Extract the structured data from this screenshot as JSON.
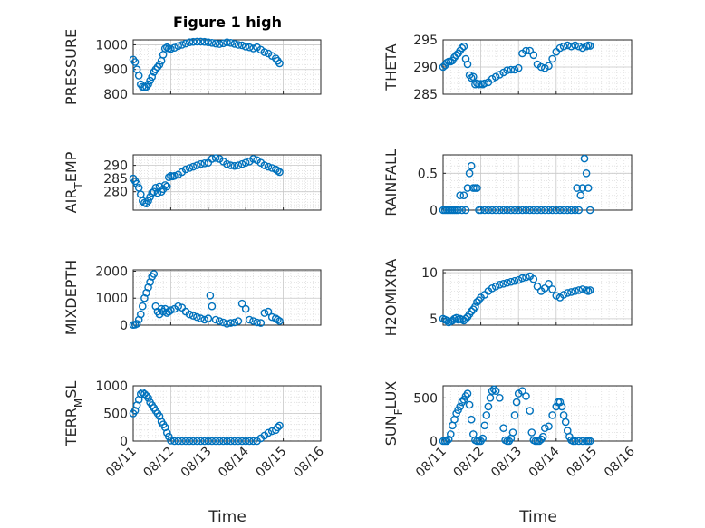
{
  "figure": {
    "title": "Figure 1 high",
    "xlabel": "Time",
    "marker_color": "#0072BD",
    "x_tick_labels": [
      "08/11",
      "08/12",
      "08/13",
      "08/14",
      "08/15",
      "08/16"
    ]
  },
  "chart_data": [
    {
      "type": "scatter",
      "marker": "circle",
      "ylabel": "PRESSURE",
      "x_unit": "days since 08/11",
      "xlim": [
        0,
        5
      ],
      "ylim": [
        800,
        1020
      ],
      "yticks": [
        800,
        900,
        1000
      ],
      "grid": true,
      "x": [
        0.0,
        0.05,
        0.1,
        0.15,
        0.2,
        0.25,
        0.3,
        0.35,
        0.4,
        0.45,
        0.5,
        0.55,
        0.6,
        0.65,
        0.7,
        0.75,
        0.8,
        0.85,
        0.9,
        0.95,
        1.0,
        1.1,
        1.2,
        1.3,
        1.4,
        1.5,
        1.6,
        1.7,
        1.8,
        1.9,
        2.0,
        2.1,
        2.2,
        2.3,
        2.4,
        2.5,
        2.6,
        2.7,
        2.8,
        2.9,
        3.0,
        3.1,
        3.2,
        3.3,
        3.4,
        3.5,
        3.6,
        3.7,
        3.8,
        3.85,
        3.9
      ],
      "y": [
        940,
        930,
        900,
        875,
        840,
        830,
        828,
        830,
        840,
        855,
        870,
        890,
        900,
        910,
        920,
        935,
        960,
        985,
        990,
        985,
        983,
        988,
        995,
        1000,
        1005,
        1010,
        1012,
        1013,
        1013,
        1012,
        1010,
        1008,
        1005,
        1003,
        1006,
        1010,
        1008,
        1004,
        1000,
        998,
        993,
        990,
        985,
        990,
        980,
        970,
        965,
        955,
        945,
        935,
        925
      ]
    },
    {
      "type": "scatter",
      "marker": "circle",
      "ylabel": "THETA",
      "x_unit": "days since 08/11",
      "xlim": [
        0,
        5
      ],
      "ylim": [
        285,
        295
      ],
      "yticks": [
        285,
        290,
        295
      ],
      "grid": true,
      "x": [
        0.0,
        0.05,
        0.1,
        0.15,
        0.2,
        0.25,
        0.3,
        0.35,
        0.4,
        0.45,
        0.5,
        0.55,
        0.6,
        0.65,
        0.7,
        0.75,
        0.8,
        0.85,
        0.9,
        0.95,
        1.0,
        1.05,
        1.1,
        1.2,
        1.3,
        1.4,
        1.5,
        1.6,
        1.7,
        1.8,
        1.9,
        2.0,
        2.1,
        2.2,
        2.3,
        2.4,
        2.5,
        2.6,
        2.7,
        2.8,
        2.9,
        3.0,
        3.1,
        3.2,
        3.3,
        3.4,
        3.5,
        3.6,
        3.7,
        3.8,
        3.85,
        3.9
      ],
      "y": [
        290.0,
        290.3,
        290.8,
        291.0,
        291.0,
        291.2,
        291.8,
        292.2,
        292.5,
        293.0,
        293.5,
        293.8,
        291.5,
        290.5,
        288.5,
        288.0,
        288.2,
        286.8,
        287.0,
        286.8,
        286.9,
        286.8,
        287.0,
        287.2,
        287.8,
        288.2,
        288.6,
        289.0,
        289.4,
        289.5,
        289.5,
        289.8,
        292.5,
        293.0,
        293.0,
        292.2,
        290.5,
        290.0,
        289.8,
        290.2,
        291.5,
        292.8,
        293.5,
        293.8,
        294.0,
        293.8,
        294.0,
        293.8,
        293.5,
        293.8,
        294.0,
        293.9
      ]
    },
    {
      "type": "scatter",
      "marker": "circle",
      "ylabel": "AIR_TEMP",
      "x_unit": "days since 08/11",
      "xlim": [
        0,
        5
      ],
      "ylim": [
        273,
        294
      ],
      "yticks": [
        280,
        285,
        290
      ],
      "grid": true,
      "x": [
        0.0,
        0.05,
        0.1,
        0.15,
        0.2,
        0.25,
        0.3,
        0.35,
        0.4,
        0.45,
        0.5,
        0.55,
        0.6,
        0.65,
        0.7,
        0.75,
        0.8,
        0.85,
        0.9,
        0.95,
        1.0,
        1.05,
        1.1,
        1.2,
        1.3,
        1.4,
        1.5,
        1.6,
        1.7,
        1.8,
        1.9,
        2.0,
        2.1,
        2.2,
        2.3,
        2.4,
        2.5,
        2.6,
        2.7,
        2.8,
        2.9,
        3.0,
        3.1,
        3.2,
        3.3,
        3.4,
        3.5,
        3.6,
        3.7,
        3.8,
        3.85,
        3.9
      ],
      "y": [
        285.0,
        284.0,
        283.0,
        281.5,
        279.0,
        276.5,
        275.8,
        275.5,
        276.5,
        278.0,
        279.5,
        280.0,
        281.5,
        279.5,
        282.0,
        280.0,
        281.0,
        282.5,
        282.0,
        285.5,
        286.0,
        285.8,
        286.0,
        286.5,
        287.5,
        288.5,
        289.0,
        289.5,
        290.0,
        290.5,
        290.8,
        291.0,
        292.5,
        292.8,
        292.5,
        291.5,
        290.5,
        290.0,
        289.8,
        290.0,
        290.5,
        291.0,
        291.5,
        292.5,
        292.0,
        291.0,
        290.0,
        289.5,
        289.0,
        288.5,
        288.0,
        287.5
      ]
    },
    {
      "type": "scatter",
      "marker": "circle",
      "ylabel": "RAINFALL",
      "x_unit": "days since 08/11",
      "xlim": [
        0,
        5
      ],
      "ylim": [
        0,
        0.75
      ],
      "yticks": [
        0,
        0.5
      ],
      "grid": true,
      "x": [
        0.0,
        0.05,
        0.1,
        0.15,
        0.2,
        0.25,
        0.3,
        0.35,
        0.4,
        0.45,
        0.5,
        0.55,
        0.6,
        0.65,
        0.7,
        0.75,
        0.8,
        0.85,
        0.9,
        0.95,
        1.0,
        1.1,
        1.2,
        1.3,
        1.4,
        1.5,
        1.6,
        1.7,
        1.8,
        1.9,
        2.0,
        2.1,
        2.2,
        2.3,
        2.4,
        2.5,
        2.6,
        2.7,
        2.8,
        2.9,
        3.0,
        3.1,
        3.2,
        3.3,
        3.4,
        3.5,
        3.55,
        3.6,
        3.65,
        3.7,
        3.75,
        3.8,
        3.85,
        3.9
      ],
      "y": [
        0,
        0,
        0,
        0,
        0,
        0,
        0,
        0,
        0,
        0.2,
        0,
        0.2,
        0,
        0.3,
        0.5,
        0.6,
        0.3,
        0.3,
        0.3,
        0,
        0,
        0,
        0,
        0,
        0,
        0,
        0,
        0,
        0,
        0,
        0,
        0,
        0,
        0,
        0,
        0,
        0,
        0,
        0,
        0,
        0,
        0,
        0,
        0,
        0,
        0,
        0.3,
        0,
        0.2,
        0.3,
        0.7,
        0.5,
        0.3,
        0
      ]
    },
    {
      "type": "scatter",
      "marker": "circle",
      "ylabel": "MIXDEPTH",
      "x_unit": "days since 08/11",
      "xlim": [
        0,
        5
      ],
      "ylim": [
        0,
        2050
      ],
      "yticks": [
        0,
        1000,
        2000
      ],
      "grid": true,
      "x": [
        0.0,
        0.05,
        0.1,
        0.15,
        0.2,
        0.25,
        0.3,
        0.35,
        0.4,
        0.45,
        0.5,
        0.55,
        0.6,
        0.65,
        0.7,
        0.75,
        0.8,
        0.85,
        0.9,
        0.95,
        1.0,
        1.1,
        1.2,
        1.3,
        1.4,
        1.5,
        1.6,
        1.7,
        1.8,
        1.9,
        2.0,
        2.05,
        2.1,
        2.2,
        2.3,
        2.4,
        2.5,
        2.6,
        2.7,
        2.8,
        2.9,
        3.0,
        3.1,
        3.2,
        3.3,
        3.4,
        3.5,
        3.6,
        3.7,
        3.8,
        3.85,
        3.9
      ],
      "y": [
        10,
        20,
        50,
        200,
        400,
        700,
        1000,
        1200,
        1400,
        1600,
        1800,
        1900,
        700,
        500,
        400,
        600,
        500,
        600,
        450,
        500,
        550,
        600,
        700,
        650,
        500,
        400,
        350,
        300,
        250,
        200,
        250,
        1100,
        700,
        200,
        150,
        100,
        50,
        80,
        100,
        150,
        800,
        600,
        200,
        150,
        100,
        80,
        450,
        500,
        300,
        250,
        200,
        150
      ]
    },
    {
      "type": "scatter",
      "marker": "circle",
      "ylabel": "H2OMIXRA",
      "x_unit": "days since 08/11",
      "xlim": [
        0,
        5
      ],
      "ylim": [
        4.3,
        10.3
      ],
      "yticks": [
        5,
        10
      ],
      "grid": true,
      "x": [
        0.0,
        0.05,
        0.1,
        0.15,
        0.2,
        0.25,
        0.3,
        0.35,
        0.4,
        0.45,
        0.5,
        0.55,
        0.6,
        0.65,
        0.7,
        0.75,
        0.8,
        0.85,
        0.9,
        0.95,
        1.0,
        1.1,
        1.2,
        1.3,
        1.4,
        1.5,
        1.6,
        1.7,
        1.8,
        1.9,
        2.0,
        2.1,
        2.2,
        2.3,
        2.4,
        2.5,
        2.6,
        2.7,
        2.8,
        2.9,
        3.0,
        3.1,
        3.2,
        3.3,
        3.4,
        3.5,
        3.6,
        3.7,
        3.8,
        3.85,
        3.9
      ],
      "y": [
        5.0,
        4.9,
        4.8,
        4.6,
        4.7,
        4.8,
        5.0,
        5.1,
        4.9,
        5.0,
        4.9,
        4.8,
        5.0,
        5.2,
        5.5,
        5.8,
        6.0,
        6.3,
        6.8,
        7.0,
        7.3,
        7.6,
        8.0,
        8.3,
        8.5,
        8.7,
        8.8,
        8.9,
        9.0,
        9.1,
        9.2,
        9.4,
        9.5,
        9.6,
        9.3,
        8.5,
        8.0,
        8.3,
        8.8,
        8.2,
        7.5,
        7.3,
        7.6,
        7.8,
        7.9,
        8.0,
        8.1,
        8.2,
        8.1,
        8.0,
        8.1
      ]
    },
    {
      "type": "scatter",
      "marker": "circle",
      "ylabel": "TERR_MSL",
      "x_unit": "days since 08/11",
      "xlim": [
        0,
        5
      ],
      "ylim": [
        0,
        1000
      ],
      "yticks": [
        0,
        500,
        1000
      ],
      "grid": true,
      "x": [
        0.0,
        0.05,
        0.1,
        0.15,
        0.2,
        0.25,
        0.3,
        0.35,
        0.4,
        0.45,
        0.5,
        0.55,
        0.6,
        0.65,
        0.7,
        0.75,
        0.8,
        0.85,
        0.9,
        0.95,
        1.0,
        1.1,
        1.2,
        1.3,
        1.4,
        1.5,
        1.6,
        1.7,
        1.8,
        1.9,
        2.0,
        2.1,
        2.2,
        2.3,
        2.4,
        2.5,
        2.6,
        2.7,
        2.8,
        2.9,
        3.0,
        3.1,
        3.2,
        3.3,
        3.4,
        3.5,
        3.6,
        3.7,
        3.8,
        3.85,
        3.9
      ],
      "y": [
        500,
        550,
        650,
        750,
        850,
        880,
        850,
        820,
        780,
        700,
        650,
        600,
        550,
        500,
        450,
        350,
        300,
        250,
        150,
        80,
        10,
        0,
        0,
        0,
        0,
        0,
        0,
        0,
        0,
        0,
        0,
        0,
        0,
        0,
        0,
        0,
        0,
        0,
        0,
        0,
        0,
        0,
        0,
        0,
        50,
        100,
        150,
        180,
        200,
        250,
        280
      ]
    },
    {
      "type": "scatter",
      "marker": "circle",
      "ylabel": "SUN_FLUX",
      "x_unit": "days since 08/11",
      "xlim": [
        0,
        5
      ],
      "ylim": [
        0,
        640
      ],
      "yticks": [
        0,
        500
      ],
      "grid": true,
      "x": [
        0.0,
        0.05,
        0.1,
        0.15,
        0.2,
        0.25,
        0.3,
        0.35,
        0.4,
        0.45,
        0.5,
        0.55,
        0.6,
        0.65,
        0.7,
        0.75,
        0.8,
        0.85,
        0.9,
        0.95,
        1.0,
        1.05,
        1.1,
        1.15,
        1.2,
        1.25,
        1.3,
        1.35,
        1.4,
        1.5,
        1.6,
        1.65,
        1.7,
        1.75,
        1.8,
        1.85,
        1.9,
        1.95,
        2.0,
        2.1,
        2.2,
        2.3,
        2.35,
        2.4,
        2.45,
        2.5,
        2.55,
        2.6,
        2.65,
        2.7,
        2.8,
        2.9,
        3.0,
        3.05,
        3.1,
        3.15,
        3.2,
        3.25,
        3.3,
        3.35,
        3.4,
        3.45,
        3.5,
        3.6,
        3.7,
        3.8,
        3.85,
        3.9
      ],
      "y": [
        0,
        0,
        0,
        20,
        80,
        180,
        250,
        320,
        360,
        400,
        450,
        480,
        520,
        550,
        420,
        250,
        80,
        10,
        0,
        0,
        0,
        30,
        180,
        300,
        400,
        500,
        580,
        600,
        580,
        500,
        150,
        10,
        0,
        0,
        30,
        100,
        300,
        450,
        550,
        580,
        520,
        350,
        100,
        10,
        0,
        0,
        0,
        20,
        50,
        150,
        170,
        300,
        400,
        450,
        450,
        400,
        300,
        220,
        120,
        50,
        10,
        0,
        0,
        0,
        0,
        0,
        0,
        0
      ]
    }
  ]
}
